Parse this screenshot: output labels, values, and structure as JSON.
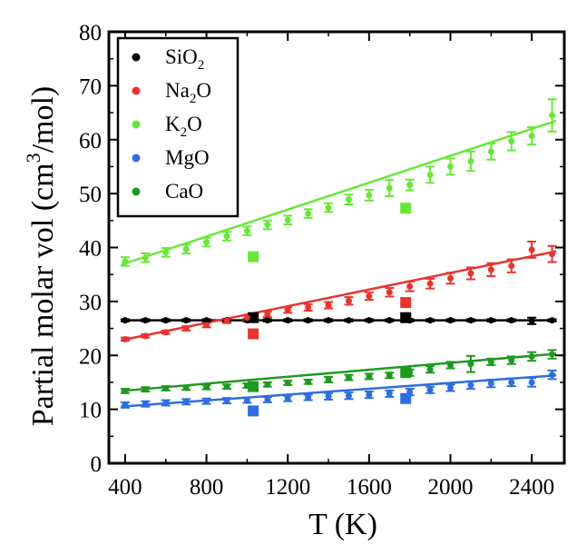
{
  "chart_data": {
    "type": "scatter",
    "xlabel": "T (K)",
    "ylabel": "Partial molar vol (cm³/mol)",
    "ylabel_parts": {
      "before": "Partial molar vol (cm",
      "sup": "3",
      "after": "/mol)"
    },
    "xlim": [
      320,
      2560
    ],
    "ylim": [
      0,
      80
    ],
    "xticks": [
      400,
      800,
      1200,
      1600,
      2000,
      2400
    ],
    "xtick_labels": [
      "400",
      "800",
      "1200",
      "1600",
      "2000",
      "2400"
    ],
    "yticks": [
      0,
      10,
      20,
      30,
      40,
      50,
      60,
      70,
      80
    ],
    "ytick_labels": [
      "0",
      "10",
      "20",
      "30",
      "40",
      "50",
      "60",
      "70",
      "80"
    ],
    "legend_position": "top-left",
    "legend": [
      {
        "base": "SiO",
        "sub": "2",
        "color": "#000000"
      },
      {
        "base": "Na",
        "sub": "2",
        "tail": "O",
        "color": "#e8342e"
      },
      {
        "base": "K",
        "sub": "2",
        "tail": "O",
        "color": "#67e836"
      },
      {
        "base": "MgO",
        "color": "#2f6ee0"
      },
      {
        "base": "CaO",
        "color": "#1f9a1f"
      }
    ],
    "series": [
      {
        "name": "SiO2",
        "color": "#000000",
        "x": [
          400,
          500,
          600,
          700,
          800,
          900,
          1000,
          1100,
          1200,
          1300,
          1400,
          1500,
          1600,
          1700,
          1800,
          1900,
          2000,
          2100,
          2200,
          2300,
          2400,
          2500
        ],
        "y": [
          26.5,
          26.5,
          26.5,
          26.5,
          26.5,
          26.5,
          26.5,
          26.5,
          26.5,
          26.5,
          26.5,
          26.5,
          26.5,
          26.5,
          26.5,
          26.5,
          26.5,
          26.5,
          26.5,
          26.5,
          26.4,
          26.5
        ],
        "err": [
          0.2,
          0.2,
          0.2,
          0.2,
          0.2,
          0.2,
          0.2,
          0.2,
          0.2,
          0.2,
          0.2,
          0.2,
          0.2,
          0.2,
          0.2,
          0.2,
          0.2,
          0.2,
          0.2,
          0.2,
          0.6,
          0.2
        ],
        "fit": [
          [
            380,
            26.5
          ],
          [
            2520,
            26.5
          ]
        ],
        "squares_x": [
          1030,
          1780
        ],
        "squares_y": [
          27.0,
          27.0
        ]
      },
      {
        "name": "Na2O",
        "color": "#e8342e",
        "x": [
          400,
          500,
          600,
          700,
          800,
          900,
          1000,
          1100,
          1200,
          1300,
          1400,
          1500,
          1600,
          1700,
          1800,
          1900,
          2000,
          2100,
          2200,
          2300,
          2400,
          2500
        ],
        "y": [
          23.0,
          23.6,
          24.3,
          25.0,
          25.6,
          26.4,
          27.0,
          27.6,
          28.4,
          28.9,
          29.3,
          30.1,
          31.0,
          31.7,
          32.8,
          33.3,
          34.3,
          35.2,
          35.9,
          36.6,
          39.6,
          38.8
        ],
        "err": [
          0.3,
          0.3,
          0.3,
          0.4,
          0.4,
          0.4,
          0.5,
          0.5,
          0.5,
          0.6,
          0.6,
          0.7,
          0.7,
          0.8,
          0.9,
          0.9,
          1.0,
          1.1,
          1.2,
          1.2,
          1.5,
          1.5
        ],
        "fit": [
          [
            380,
            22.8
          ],
          [
            2520,
            39.3
          ]
        ],
        "squares_x": [
          1030,
          1780
        ],
        "squares_y": [
          24.0,
          29.8
        ]
      },
      {
        "name": "K2O",
        "color": "#67e836",
        "x": [
          400,
          500,
          600,
          700,
          800,
          900,
          1000,
          1100,
          1200,
          1300,
          1400,
          1500,
          1600,
          1700,
          1800,
          1900,
          2000,
          2100,
          2200,
          2300,
          2400,
          2500
        ],
        "y": [
          37.4,
          38.1,
          39.1,
          39.7,
          41.0,
          42.1,
          43.1,
          44.2,
          45.1,
          46.3,
          47.4,
          48.9,
          49.7,
          51.0,
          51.6,
          53.5,
          55.0,
          56.0,
          57.8,
          59.7,
          60.7,
          64.5
        ],
        "err": [
          0.8,
          0.8,
          0.8,
          0.8,
          0.8,
          0.8,
          0.8,
          0.8,
          0.8,
          0.8,
          0.8,
          0.9,
          1.0,
          1.5,
          1.0,
          1.5,
          1.5,
          1.8,
          1.5,
          1.7,
          1.6,
          3.0
        ],
        "fit": [
          [
            380,
            36.8
          ],
          [
            2520,
            63.5
          ]
        ],
        "squares_x": [
          1030,
          1780
        ],
        "squares_y": [
          38.3,
          47.3
        ]
      },
      {
        "name": "MgO",
        "color": "#2f6ee0",
        "x": [
          400,
          500,
          600,
          700,
          800,
          900,
          1000,
          1100,
          1200,
          1300,
          1400,
          1500,
          1600,
          1700,
          1800,
          1900,
          2000,
          2100,
          2200,
          2300,
          2400,
          2500
        ],
        "y": [
          10.8,
          11.0,
          11.2,
          11.4,
          11.5,
          11.6,
          11.7,
          11.8,
          12.0,
          12.2,
          12.4,
          12.5,
          12.7,
          12.9,
          13.2,
          13.6,
          14.0,
          14.5,
          14.8,
          15.0,
          15.0,
          16.4
        ],
        "err": [
          0.5,
          0.5,
          0.5,
          0.5,
          0.5,
          0.5,
          0.5,
          0.5,
          0.5,
          0.5,
          0.6,
          0.6,
          0.6,
          0.6,
          0.6,
          0.6,
          0.6,
          0.7,
          0.7,
          0.7,
          0.8,
          0.8
        ],
        "fit": [
          [
            380,
            10.5
          ],
          [
            2520,
            16.3
          ]
        ],
        "squares_x": [
          1030,
          1780
        ],
        "squares_y": [
          9.7,
          12.0
        ]
      },
      {
        "name": "CaO",
        "color": "#1f9a1f",
        "x": [
          400,
          500,
          600,
          700,
          800,
          900,
          1000,
          1100,
          1200,
          1300,
          1400,
          1500,
          1600,
          1700,
          1800,
          1900,
          2000,
          2100,
          2200,
          2300,
          2400,
          2500
        ],
        "y": [
          13.4,
          13.7,
          13.9,
          14.0,
          14.1,
          14.2,
          14.4,
          14.6,
          14.9,
          15.1,
          15.5,
          15.9,
          16.1,
          16.3,
          16.8,
          17.4,
          18.2,
          18.4,
          18.8,
          19.1,
          19.8,
          20.2
        ],
        "err": [
          0.4,
          0.4,
          0.4,
          0.4,
          0.4,
          0.4,
          0.4,
          0.4,
          0.4,
          0.4,
          0.5,
          0.5,
          0.5,
          0.5,
          0.6,
          0.6,
          0.6,
          1.5,
          0.6,
          0.7,
          0.8,
          0.8
        ],
        "fit": [
          [
            380,
            13.4
          ],
          [
            2520,
            20.3
          ]
        ],
        "squares_x": [
          1030,
          1780
        ],
        "squares_y": [
          14.2,
          16.8
        ]
      }
    ]
  }
}
